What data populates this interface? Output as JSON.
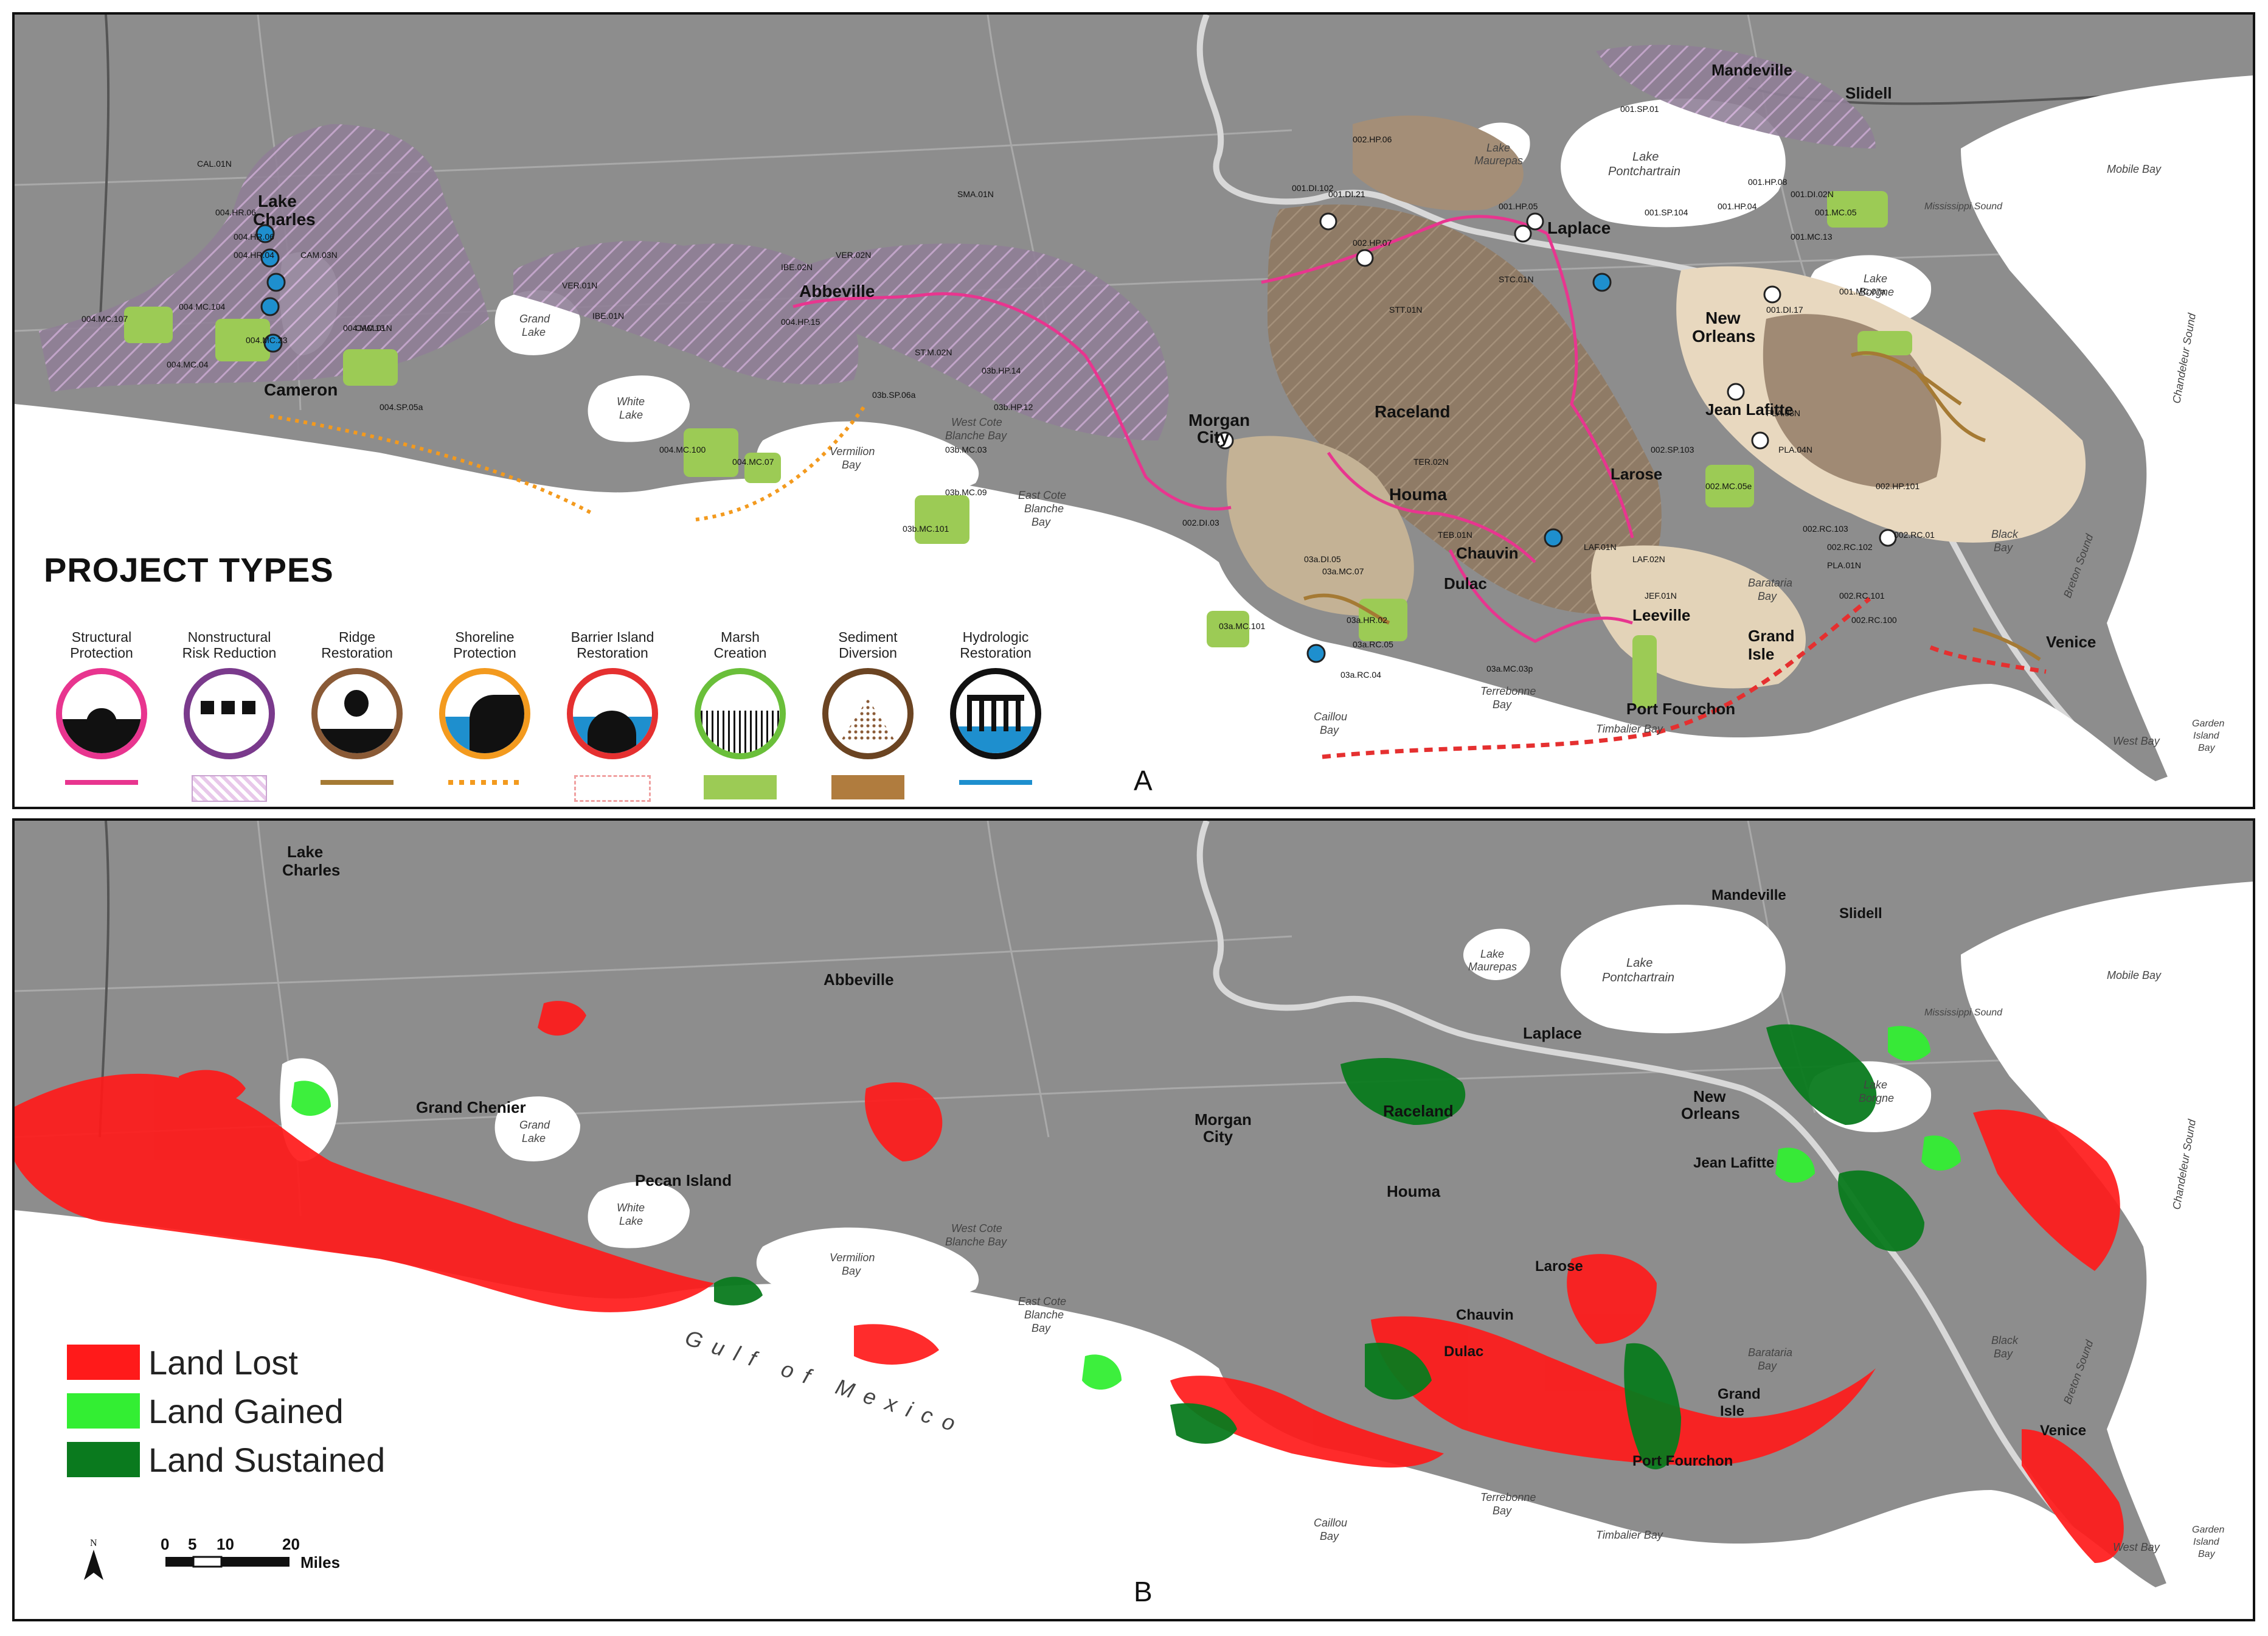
{
  "panels": {
    "a": {
      "letter": "A"
    },
    "b": {
      "letter": "B"
    }
  },
  "project_types": {
    "title": "PROJECT TYPES",
    "items": [
      {
        "label_1": "Structural",
        "label_2": "Protection",
        "ring_color": "#e8358f",
        "swatch": "line-magenta"
      },
      {
        "label_1": "Nonstructural",
        "label_2": "Risk Reduction",
        "ring_color": "#7a3a8c",
        "swatch": "hatch-purple"
      },
      {
        "label_1": "Ridge",
        "label_2": "Restoration",
        "ring_color": "#8a5a36",
        "swatch": "line-brown"
      },
      {
        "label_1": "Shoreline",
        "label_2": "Protection",
        "ring_color": "#f39a1e",
        "swatch": "dots-orange"
      },
      {
        "label_1": "Barrier Island",
        "label_2": "Restoration",
        "ring_color": "#e53030",
        "swatch": "dash-red"
      },
      {
        "label_1": "Marsh",
        "label_2": "Creation",
        "ring_color": "#6abf3a",
        "swatch": "fill-green"
      },
      {
        "label_1": "Sediment",
        "label_2": "Diversion",
        "ring_color": "#6b4422",
        "swatch": "fill-brown"
      },
      {
        "label_1": "Hydrologic",
        "label_2": "Restoration",
        "ring_color": "#111111",
        "swatch": "line-blue"
      }
    ]
  },
  "land_legend": {
    "items": [
      {
        "label": "Land Lost",
        "color": "#ff1a1a"
      },
      {
        "label": "Land Gained",
        "color": "#33ee33"
      },
      {
        "label": "Land Sustained",
        "color": "#0a7a1e"
      }
    ]
  },
  "scale_bar": {
    "ticks": [
      "0",
      "5",
      "10",
      "20"
    ],
    "unit": "Miles",
    "north": "N"
  },
  "places": {
    "lake_charles_1": "Lake",
    "lake_charles_2": "Charles",
    "cameron": "Cameron",
    "abbeville": "Abbeville",
    "morgan_city_1": "Morgan",
    "morgan_city_2": "City",
    "houma": "Houma",
    "raceland": "Raceland",
    "laplace": "Laplace",
    "new_orleans_1": "New",
    "new_orleans_2": "Orleans",
    "mandeville": "Mandeville",
    "slidell": "Slidell",
    "lafitte": "Jean Lafitte",
    "larose": "Larose",
    "chauvin": "Chauvin",
    "dulac": "Dulac",
    "leeville": "Leeville",
    "grand_isle_1": "Grand",
    "grand_isle_2": "Isle",
    "port_fourchon": "Port Fourchon",
    "venice": "Venice",
    "grand_chenier": "Grand Chenier",
    "pecan_island": "Pecan Island"
  },
  "water": {
    "lake_pontchartrain_1": "Lake",
    "lake_pontchartrain_2": "Pontchartrain",
    "lake_maurepas_1": "Lake",
    "lake_maurepas_2": "Maurepas",
    "grand_lake_1": "Grand",
    "grand_lake_2": "Lake",
    "white_lake_1": "White",
    "white_lake_2": "Lake",
    "vermilion_bay_1": "Vermilion",
    "vermilion_bay_2": "Bay",
    "west_cote_1": "West Cote",
    "west_cote_2": "Blanche Bay",
    "east_cote_1": "East Cote",
    "east_cote_2": "Blanche",
    "east_cote_3": "Bay",
    "lake_borgne_1": "Lake",
    "lake_borgne_2": "Borgne",
    "barataria_1": "Barataria",
    "barataria_2": "Bay",
    "terrebonne_1": "Terrebonne",
    "terrebonne_2": "Bay",
    "timbalier": "Timbalier Bay",
    "caillou_1": "Caillou",
    "caillou_2": "Bay",
    "black_bay_1": "Black",
    "black_bay_2": "Bay",
    "breton_sound": "Breton Sound",
    "chandeleur_sound": "Chandeleur Sound",
    "mobile_bay": "Mobile Bay",
    "mississippi_sound": "Mississippi Sound",
    "west_bay": "West Bay",
    "garden_island_1": "Garden",
    "garden_island_2": "Island",
    "garden_island_3": "Bay",
    "gulf": "Gulf of Mexico"
  },
  "project_codes": [
    "CAL.01N",
    "004.HR.06",
    "004.HR.06",
    "004.HR.04",
    "CAM.03N",
    "CAM.01N",
    "004.MC.107",
    "004.MC.104",
    "004.MC.13",
    "004.MC.23",
    "004.MC.04",
    "004.SP.05a",
    "VER.01N",
    "VER.02N",
    "IBE.02N",
    "IBE.01N",
    "SMA.01N",
    "004.HP.15",
    "03b.SP.06a",
    "03b.MC.09",
    "03b.MC.101",
    "03b.MC.03",
    "004.MC.100",
    "004.MC.07",
    "ST.M.02N",
    "03b.HP.14",
    "03b.HP.12",
    "002.HP.06",
    "001.SP.01",
    "001.HP.08",
    "001.SP.104",
    "001.HP.05",
    "001.HP.04",
    "001.DI.102",
    "001.DI.21",
    "002.HP.07",
    "STC.01N",
    "STT.01N",
    "JEF.01N",
    "PLA.01N",
    "002.DI.03",
    "002.RC.100",
    "002.RC.101",
    "002.RC.102",
    "002.RC.103",
    "001.MC.13",
    "001.MC.07a",
    "001.MC.05",
    "001.DI.17",
    "001.DI.02N",
    "PLA.03N",
    "PLA.04N",
    "03a.DI.05",
    "03a.MC.07",
    "03a.HR.02",
    "TEB.01N",
    "TER.02N",
    "03a.MC.101",
    "03a.RC.05",
    "03a.RC.04",
    "03a.MC.03p",
    "LAF.01N",
    "LAF.02N",
    "002.SP.103",
    "002.MC.05e",
    "002.HP.101",
    "002.RC.01"
  ],
  "colors": {
    "land": "#8d8d8d",
    "water": "#ffffff",
    "structural": "#e8358f",
    "nonstructural": "#b8a3bc",
    "sediment_dark": "#8a7763",
    "sediment_light": "#e8d8bf",
    "marsh": "#9ccb55",
    "ridge": "#a57a34",
    "shoreline": "#f39a1e",
    "barrier": "#e53030",
    "hydrologic": "#1e8fce"
  }
}
